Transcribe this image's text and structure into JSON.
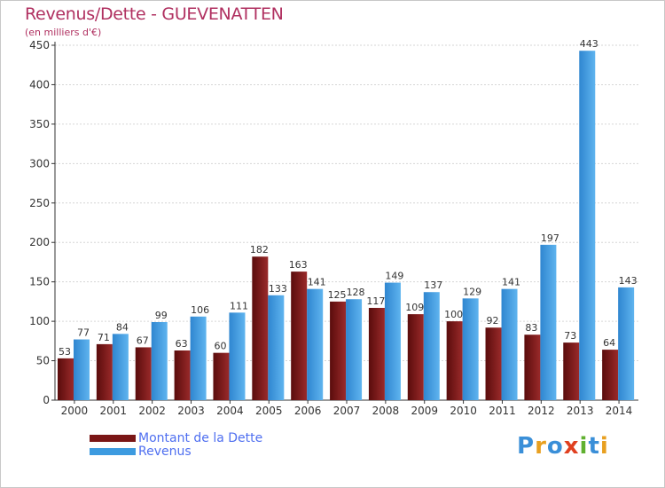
{
  "chart_data": {
    "type": "bar",
    "title": "Revenus/Dette - GUEVENATTEN",
    "subtitle": "(en milliers d'€)",
    "categories": [
      "2000",
      "2001",
      "2002",
      "2003",
      "2004",
      "2005",
      "2006",
      "2007",
      "2008",
      "2009",
      "2010",
      "2011",
      "2012",
      "2013",
      "2014"
    ],
    "series": [
      {
        "name": "Montant de la Dette",
        "color": "#7a1616",
        "values": [
          53,
          71,
          67,
          63,
          60,
          182,
          163,
          125,
          117,
          109,
          100,
          92,
          83,
          73,
          64
        ]
      },
      {
        "name": "Revenus",
        "color": "#3d9be0",
        "values": [
          77,
          84,
          99,
          106,
          111,
          133,
          141,
          128,
          149,
          137,
          129,
          141,
          197,
          443,
          143
        ]
      }
    ],
    "ylim": [
      0,
      450
    ],
    "yticks": [
      0,
      50,
      100,
      150,
      200,
      250,
      300,
      350,
      400,
      450
    ],
    "grid": true,
    "legend_position": "bottom-left"
  },
  "legend": {
    "items": [
      {
        "label": "Montant de la Dette",
        "color": "#7a1616"
      },
      {
        "label": "Revenus",
        "color": "#3d9be0"
      }
    ]
  },
  "logo": {
    "text": "Proxiti",
    "letters": [
      {
        "ch": "P",
        "color": "#3a8fd8"
      },
      {
        "ch": "r",
        "color": "#e8a020"
      },
      {
        "ch": "o",
        "color": "#3a8fd8"
      },
      {
        "ch": "x",
        "color": "#e04020"
      },
      {
        "ch": "i",
        "color": "#60b030"
      },
      {
        "ch": "t",
        "color": "#3a8fd8"
      },
      {
        "ch": "i",
        "color": "#e8a020"
      }
    ]
  }
}
